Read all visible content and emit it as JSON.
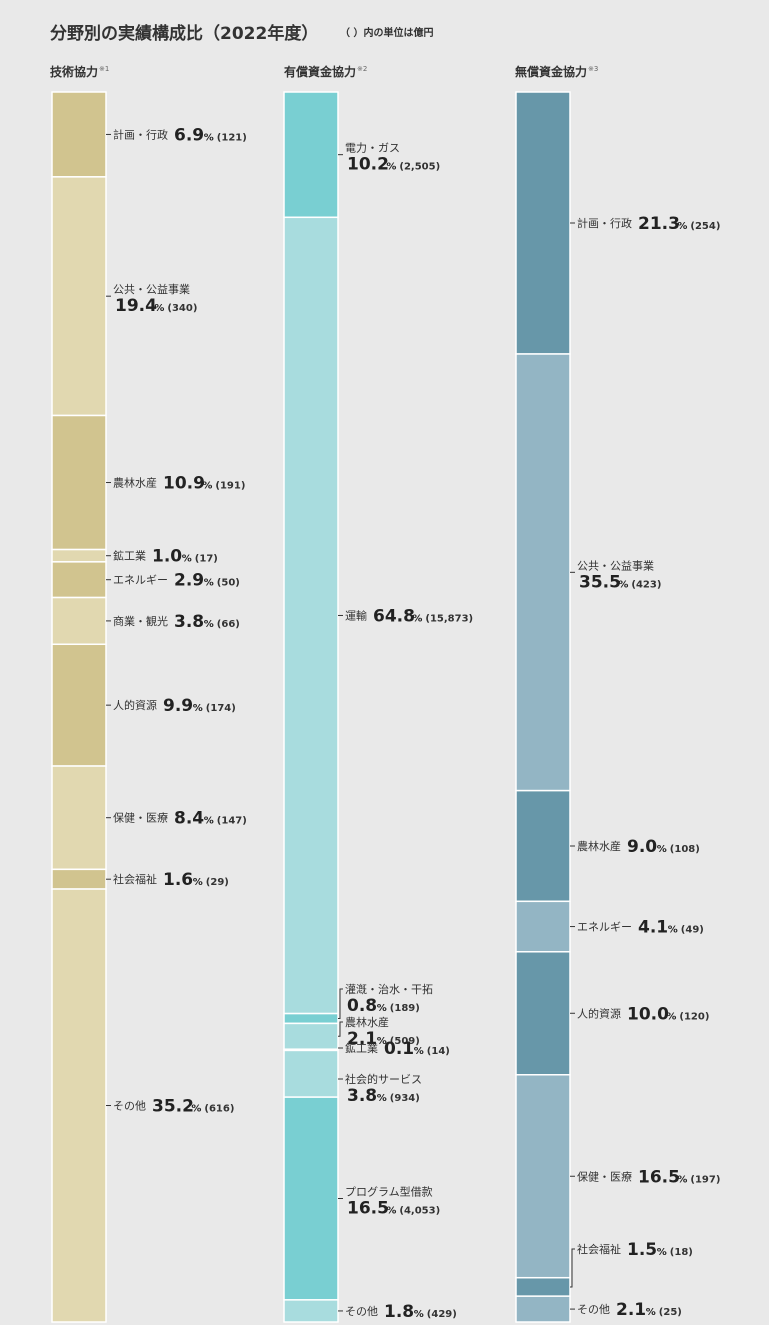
{
  "chart_data": {
    "type": "stacked-bar",
    "title": "分野別の実績構成比（2022年度）",
    "subtitle": "（ ）内の単位は億円",
    "charts": [
      {
        "title": "技術協力",
        "note": "※1",
        "colors": [
          "#d1c48f",
          "#e1d8b0"
        ],
        "segments": [
          {
            "name": "計画・行政",
            "pct": "6.9",
            "value": "121"
          },
          {
            "name": "公共・公益事業",
            "pct": "19.4",
            "value": "340"
          },
          {
            "name": "農林水産",
            "pct": "10.9",
            "value": "191"
          },
          {
            "name": "鉱工業",
            "pct": "1.0",
            "value": "17"
          },
          {
            "name": "エネルギー",
            "pct": "2.9",
            "value": "50"
          },
          {
            "name": "商業・観光",
            "pct": "3.8",
            "value": "66"
          },
          {
            "name": "人的資源",
            "pct": "9.9",
            "value": "174"
          },
          {
            "name": "保健・医療",
            "pct": "8.4",
            "value": "147"
          },
          {
            "name": "社会福祉",
            "pct": "1.6",
            "value": "29"
          },
          {
            "name": "その他",
            "pct": "35.2",
            "value": "616"
          }
        ]
      },
      {
        "title": "有償資金協力",
        "note": "※2",
        "colors": [
          "#79cfd2",
          "#a8dcde"
        ],
        "segments": [
          {
            "name": "電力・ガス",
            "pct": "10.2",
            "value": "2,505"
          },
          {
            "name": "運輸",
            "pct": "64.8",
            "value": "15,873"
          },
          {
            "name": "灌漑・治水・干拓",
            "pct": "0.8",
            "value": "189"
          },
          {
            "name": "農林水産",
            "pct": "2.1",
            "value": "509"
          },
          {
            "name": "鉱工業",
            "pct": "0.1",
            "value": "14"
          },
          {
            "name": "社会的サービス",
            "pct": "3.8",
            "value": "934"
          },
          {
            "name": "プログラム型借款",
            "pct": "16.5",
            "value": "4,053"
          },
          {
            "name": "その他",
            "pct": "1.8",
            "value": "429"
          }
        ]
      },
      {
        "title": "無償資金協力",
        "note": "※3",
        "colors": [
          "#6797a9",
          "#93b5c4"
        ],
        "segments": [
          {
            "name": "計画・行政",
            "pct": "21.3",
            "value": "254"
          },
          {
            "name": "公共・公益事業",
            "pct": "35.5",
            "value": "423"
          },
          {
            "name": "農林水産",
            "pct": "9.0",
            "value": "108"
          },
          {
            "name": "エネルギー",
            "pct": "4.1",
            "value": "49"
          },
          {
            "name": "人的資源",
            "pct": "10.0",
            "value": "120"
          },
          {
            "name": "保健・医療",
            "pct": "16.5",
            "value": "197"
          },
          {
            "name": "社会福祉",
            "pct": "1.5",
            "value": "18"
          },
          {
            "name": "その他",
            "pct": "2.1",
            "value": "25"
          }
        ]
      }
    ]
  }
}
